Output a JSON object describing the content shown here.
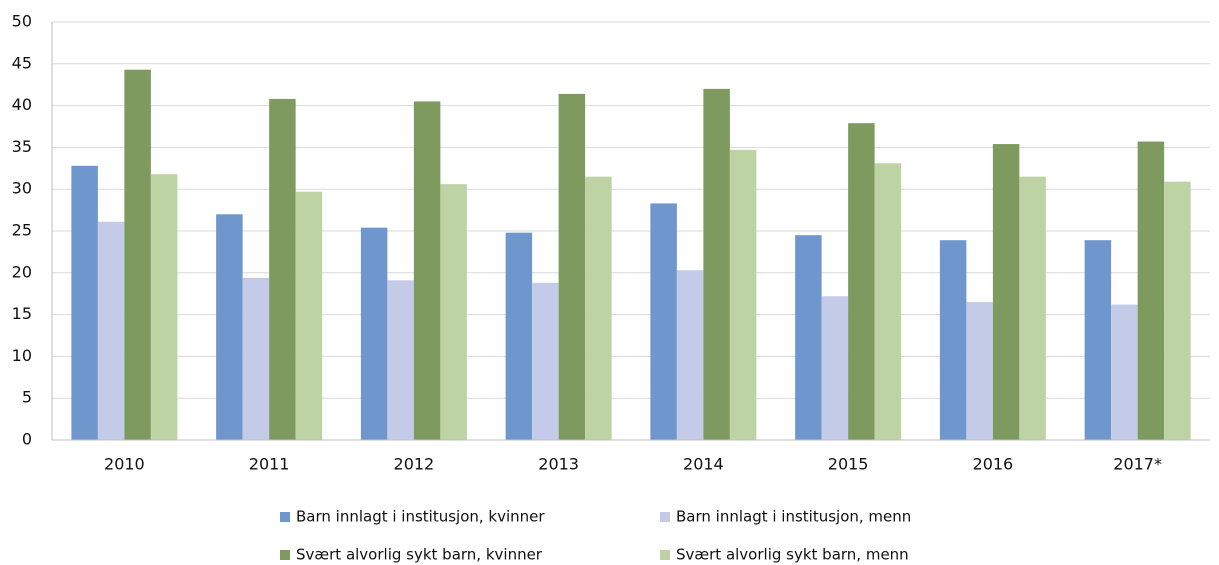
{
  "chart_data": {
    "type": "bar",
    "categories": [
      "2010",
      "2011",
      "2012",
      "2013",
      "2014",
      "2015",
      "2016",
      "2017*"
    ],
    "series": [
      {
        "name": "Barn innlagt i institusjon, kvinner",
        "color": "#6f97cd",
        "values": [
          32.8,
          27.0,
          25.4,
          24.8,
          28.3,
          24.5,
          23.9,
          23.9
        ]
      },
      {
        "name": "Barn innlagt i institusjon, menn",
        "color": "#c3cbe8",
        "values": [
          26.1,
          19.4,
          19.1,
          18.8,
          20.3,
          17.2,
          16.5,
          16.2
        ]
      },
      {
        "name": "Svært alvorlig sykt barn, kvinner",
        "color": "#7f9a5f",
        "values": [
          44.3,
          40.8,
          40.5,
          41.4,
          42.0,
          37.9,
          35.4,
          35.7
        ]
      },
      {
        "name": "Svært alvorlig sykt barn, menn",
        "color": "#bdd3a3",
        "values": [
          31.8,
          29.7,
          30.6,
          31.5,
          34.7,
          33.1,
          31.5,
          30.9
        ]
      }
    ],
    "ylim": [
      0,
      50
    ],
    "yticks": [
      0,
      5,
      10,
      15,
      20,
      25,
      30,
      35,
      40,
      45,
      50
    ],
    "grid": true
  }
}
